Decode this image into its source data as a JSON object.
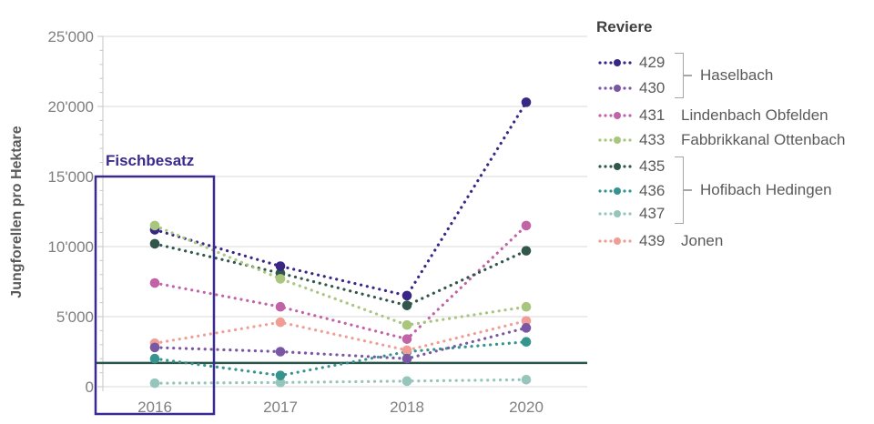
{
  "chart_data": {
    "type": "line",
    "line_style": "dotted",
    "ylabel": "Jungforellen pro Hektare",
    "categories": [
      "2016",
      "2017",
      "2018",
      "2020"
    ],
    "ylim": [
      0,
      25000
    ],
    "y_ticks": [
      0,
      5000,
      10000,
      15000,
      20000,
      25000
    ],
    "y_tick_labels": [
      "0",
      "5'000",
      "10'000",
      "15'000",
      "20'000",
      "25'000"
    ],
    "y_minor_tick_step": 1000,
    "grid": "horizontal",
    "series": [
      {
        "id": "429",
        "name": "429",
        "color": "#392786",
        "values": [
          11200,
          8600,
          6500,
          20300
        ]
      },
      {
        "id": "430",
        "name": "430",
        "color": "#7a57a4",
        "values": [
          2800,
          2500,
          2000,
          4200
        ]
      },
      {
        "id": "431",
        "name": "431",
        "color": "#c263a8",
        "values": [
          7400,
          5700,
          3400,
          11500
        ]
      },
      {
        "id": "433",
        "name": "433",
        "color": "#a9c67e",
        "values": [
          11500,
          7700,
          4400,
          5700
        ]
      },
      {
        "id": "435",
        "name": "435",
        "color": "#31564b",
        "values": [
          10200,
          8100,
          5800,
          9700
        ]
      },
      {
        "id": "436",
        "name": "436",
        "color": "#35948e",
        "values": [
          2000,
          800,
          2500,
          3200
        ]
      },
      {
        "id": "437",
        "name": "437",
        "color": "#96c5bc",
        "values": [
          250,
          300,
          400,
          500
        ]
      },
      {
        "id": "439",
        "name": "439",
        "color": "#f09d95",
        "values": [
          3100,
          4600,
          2600,
          4700
        ]
      }
    ],
    "reference_line": {
      "value": 1700,
      "color": "#2b564c"
    },
    "annotation": {
      "label": "Fischbesatz",
      "color": "#392a8d",
      "applies_to": "2016"
    }
  },
  "legend": {
    "title": "Reviere",
    "items": [
      {
        "id": "429",
        "label": "429",
        "color": "#392786"
      },
      {
        "id": "430",
        "label": "430",
        "color": "#7a57a4"
      },
      {
        "id": "431",
        "label": "431",
        "color": "#c263a8"
      },
      {
        "id": "433",
        "label": "433",
        "color": "#a9c67e"
      },
      {
        "id": "435",
        "label": "435",
        "color": "#31564b"
      },
      {
        "id": "436",
        "label": "436",
        "color": "#35948e"
      },
      {
        "id": "437",
        "label": "437",
        "color": "#96c5bc"
      },
      {
        "id": "439",
        "label": "439",
        "color": "#f09d95"
      }
    ],
    "groups": [
      {
        "label": "Haselbach",
        "items": [
          "429",
          "430"
        ]
      },
      {
        "label": "Lindenbach Obfelden",
        "items": [
          "431"
        ]
      },
      {
        "label": "Fabbrikkanal Ottenbach",
        "items": [
          "433"
        ]
      },
      {
        "label": "Hofibach Hedingen",
        "items": [
          "435",
          "436",
          "437"
        ]
      },
      {
        "label": "Jonen",
        "items": [
          "439"
        ]
      }
    ]
  }
}
